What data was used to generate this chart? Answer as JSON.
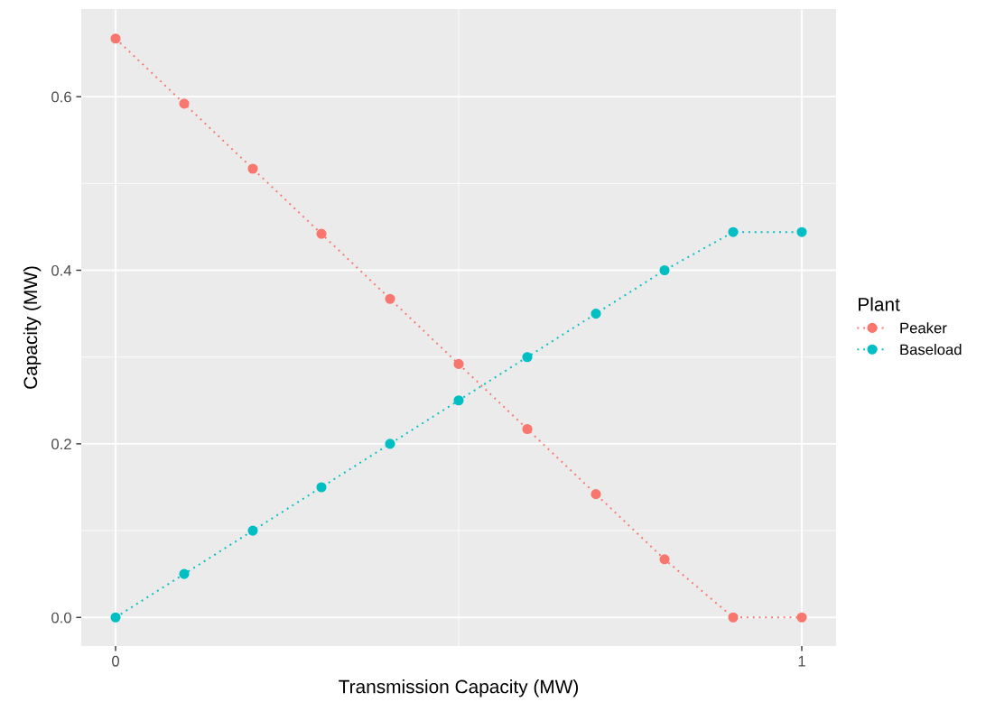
{
  "chart_data": {
    "type": "line",
    "xlabel": "Transmission Capacity (MW)",
    "ylabel": "Capacity (MW)",
    "legend_title": "Plant",
    "x": [
      0,
      0.1,
      0.2,
      0.3,
      0.4,
      0.5,
      0.6,
      0.7,
      0.8,
      0.9,
      1.0
    ],
    "series": [
      {
        "name": "Peaker",
        "color": "#f8766d",
        "values": [
          0.667,
          0.592,
          0.517,
          0.442,
          0.367,
          0.292,
          0.217,
          0.142,
          0.067,
          0,
          0
        ]
      },
      {
        "name": "Baseload",
        "color": "#00bfc4",
        "values": [
          0,
          0.05,
          0.1,
          0.15,
          0.2,
          0.25,
          0.3,
          0.35,
          0.4,
          0.444,
          0.444
        ]
      }
    ],
    "xlim": [
      -0.05,
      1.05
    ],
    "xticks": [
      0,
      1
    ],
    "ylim": [
      -0.033,
      0.701
    ],
    "yticks": [
      {
        "value": 0,
        "label": "0.0"
      },
      {
        "value": 0.2,
        "label": "0.2"
      },
      {
        "value": 0.4,
        "label": "0.4"
      },
      {
        "value": 0.6,
        "label": "0.6"
      }
    ],
    "grid": true,
    "legend": "right",
    "marker": "circle",
    "line_style": "dotted"
  }
}
